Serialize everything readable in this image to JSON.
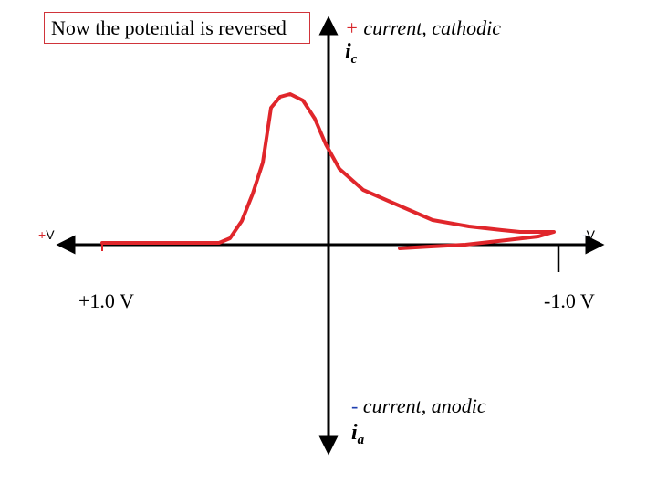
{
  "caption": "Now the potential is reversed",
  "y_axis_top": {
    "sign": "+",
    "text": " current, cathodic",
    "symbol": "i",
    "subscript": "c"
  },
  "y_axis_bottom": {
    "sign": "-",
    "text": " current, anodic",
    "symbol": "i",
    "subscript": "a"
  },
  "x_axis_left": {
    "sign": "+",
    "unit": "V",
    "value_label": "+1.0 V"
  },
  "x_axis_right": {
    "sign": "-",
    "unit": "V",
    "value_label": "-1.0 V"
  },
  "colors": {
    "curve": "#e0262b",
    "axes": "#000000",
    "caption_border": "#d0343a",
    "positive_sign": "#d8262b",
    "negative_sign": "#1f3fb0"
  }
}
